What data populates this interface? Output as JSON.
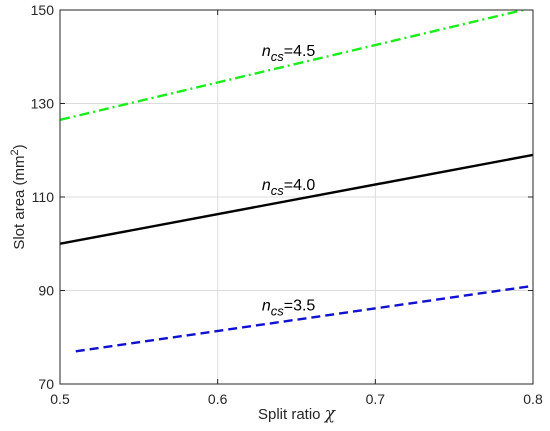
{
  "chart_data": {
    "type": "line",
    "xlabel": "Split ratio",
    "xlabel_symbol": "χ",
    "ylabel": "Slot area (mm",
    "ylabel_sup": "2",
    "ylabel_end": ")",
    "xlim": [
      0.5,
      0.8
    ],
    "ylim": [
      70,
      150
    ],
    "xticks": [
      0.5,
      0.6,
      0.7,
      0.8
    ],
    "xtick_labels": [
      "0.5",
      "0.6",
      "0.7",
      "0.8"
    ],
    "yticks": [
      70,
      90,
      110,
      130,
      150
    ],
    "ytick_labels": [
      "70",
      "90",
      "110",
      "130",
      "150"
    ],
    "grid": true,
    "series": [
      {
        "label_var": "n",
        "label_sub": "cs",
        "label_value": "=4.5",
        "color": "#1aee1a",
        "style": "dashdot",
        "x": [
          0.5,
          0.8
        ],
        "y": [
          126.5,
          150.5
        ]
      },
      {
        "label_var": "n",
        "label_sub": "cs",
        "label_value": "=4.0",
        "color": "#000000",
        "style": "solid",
        "x": [
          0.5,
          0.8
        ],
        "y": [
          100,
          119
        ]
      },
      {
        "label_var": "n",
        "label_sub": "cs",
        "label_value": "=3.5",
        "color": "#1010d0",
        "style": "dashed",
        "x": [
          0.51,
          0.8
        ],
        "y": [
          77,
          91
        ]
      }
    ]
  }
}
